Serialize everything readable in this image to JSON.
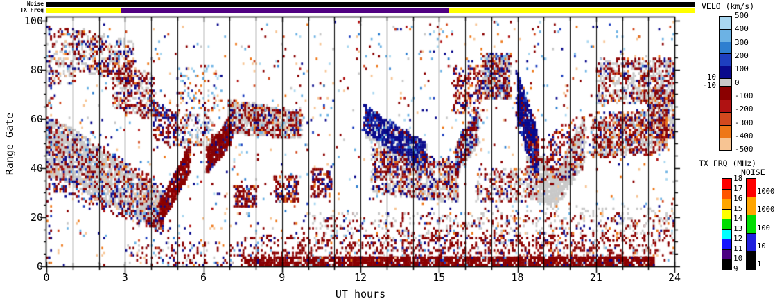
{
  "strips": {
    "noise_label": "Noise",
    "tx_freq_label": "TX Freq",
    "noise_segments": [
      {
        "t0": 0,
        "t1": 24.77,
        "color": "#000000"
      }
    ],
    "tx_freq_segments": [
      {
        "t0": 0,
        "t1": 2.86,
        "color": "#FFFF00"
      },
      {
        "t0": 2.86,
        "t1": 15.36,
        "color": "#500082"
      },
      {
        "t0": 15.36,
        "t1": 24.77,
        "color": "#FFFF00"
      }
    ]
  },
  "axes": {
    "y_label": "Range Gate",
    "x_label": "UT hours",
    "y_major_ticks": [
      0,
      20,
      40,
      60,
      80,
      100
    ],
    "y_minor_step": 5,
    "x_major_ticks": [
      0,
      3,
      6,
      9,
      12,
      15,
      18,
      21,
      24
    ],
    "x_minor_step": 1
  },
  "colorbars": {
    "velo": {
      "title": "VELO (km/s)",
      "tick_labels": [
        "500",
        "400",
        "300",
        "200",
        "100",
        "0",
        "-100",
        "-200",
        "-300",
        "-400",
        "-500"
      ],
      "inner_ticks": [
        "10",
        "-10"
      ],
      "segments_top_to_bottom": [
        "#A9D7F0",
        "#6CB2E4",
        "#2E7FD0",
        "#1E3FBF",
        "#09098C",
        "#C9C9C9",
        "#8B0000",
        "#B01212",
        "#D2491E",
        "#EE7718",
        "#F7C493"
      ]
    },
    "tx_frq": {
      "title": "TX FRQ (MHz)",
      "tick_labels": [
        "18",
        "17",
        "16",
        "15",
        "14",
        "13",
        "12",
        "11",
        "10",
        "9"
      ],
      "segments_top_to_bottom": [
        "#FF0000",
        "#FF5500",
        "#FFA500",
        "#FFFF00",
        "#00DD00",
        "#00FFFF",
        "#1414FF",
        "#4B0082",
        "#000000"
      ]
    },
    "noise": {
      "title": "NOISE",
      "tick_labels": [
        "10000",
        "1000",
        "100",
        "10",
        "1"
      ],
      "segments_top_to_bottom": [
        "#FF0000",
        "#FFA500",
        "#00DD00",
        "#2020DD",
        "#000000"
      ]
    }
  },
  "chart_data": {
    "type": "scatter",
    "subtype": "range-time-parameter",
    "title": "",
    "xlabel": "UT hours",
    "ylabel": "Range Gate",
    "xlim": [
      0,
      24
    ],
    "ylim": [
      0,
      101
    ],
    "grid": "vertical-hour-lines",
    "hour_line_color": "#000000",
    "seed": 42,
    "cell": {
      "dt_hours": 0.07,
      "dg_gates": 1
    },
    "palette": {
      "darkred": "#8B0000",
      "red": "#B01212",
      "orangered": "#D2491E",
      "orange": "#EE7718",
      "peach": "#F7C493",
      "navy": "#09098C",
      "blue": "#1E3FBF",
      "mblue": "#2E7FD0",
      "lblue": "#6CB2E4",
      "paleblue": "#A9D7F0",
      "gray": "#C9C9C9"
    },
    "ground_scatter_clusters": [
      {
        "t0": 0.0,
        "t1": 1.0,
        "gs": [
          36,
          60
        ],
        "ge": [
          34,
          56
        ],
        "n": 520
      },
      {
        "t0": 1.0,
        "t1": 2.6,
        "gs": [
          32,
          56
        ],
        "ge": [
          24,
          44
        ],
        "n": 800
      },
      {
        "t0": 2.6,
        "t1": 4.45,
        "gs": [
          24,
          44
        ],
        "ge": [
          15,
          30
        ],
        "n": 700
      },
      {
        "t0": 6.1,
        "t1": 7.05,
        "gs": [
          38,
          50
        ],
        "ge": [
          50,
          62
        ],
        "n": 160
      },
      {
        "t0": 6.9,
        "t1": 9.7,
        "gs": [
          54,
          68
        ],
        "ge": [
          52,
          63
        ],
        "n": 650
      },
      {
        "t0": 12.15,
        "t1": 14.5,
        "gs": [
          52,
          64
        ],
        "ge": [
          36,
          50
        ],
        "n": 420
      },
      {
        "t0": 12.4,
        "t1": 15.7,
        "gs": [
          30,
          48
        ],
        "ge": [
          26,
          42
        ],
        "n": 620
      },
      {
        "t0": 15.6,
        "t1": 16.5,
        "gs": [
          36,
          50
        ],
        "ge": [
          50,
          64
        ],
        "n": 260
      },
      {
        "t0": 16.6,
        "t1": 17.7,
        "gs": [
          68,
          86
        ],
        "ge": [
          68,
          86
        ],
        "n": 280
      },
      {
        "t0": 18.3,
        "t1": 19.45,
        "gs": [
          28,
          52
        ],
        "ge": [
          24,
          38
        ],
        "n": 550
      },
      {
        "t0": 19.45,
        "t1": 20.55,
        "gs": [
          24,
          38
        ],
        "ge": [
          42,
          62
        ],
        "n": 550
      },
      {
        "t0": 20.8,
        "t1": 23.7,
        "gs": [
          44,
          60
        ],
        "ge": [
          48,
          64
        ],
        "n": 600
      },
      {
        "t0": 21.0,
        "t1": 24.0,
        "gs": [
          66,
          84
        ],
        "ge": [
          66,
          84
        ],
        "n": 450
      },
      {
        "t0": 23.0,
        "t1": 24.0,
        "gs": [
          52,
          72
        ],
        "ge": [
          52,
          72
        ],
        "n": 220
      },
      {
        "t0": 0.0,
        "t1": 1.0,
        "gs": [
          74,
          92
        ],
        "ge": [
          74,
          92
        ],
        "n": 70
      },
      {
        "t0": 1.0,
        "t1": 3.3,
        "gs": [
          80,
          97
        ],
        "ge": [
          74,
          92
        ],
        "n": 200
      },
      {
        "t0": 2.5,
        "t1": 4.1,
        "gs": [
          64,
          84
        ],
        "ge": [
          60,
          78
        ],
        "n": 170
      },
      {
        "t0": 16.4,
        "t1": 18.3,
        "gs": [
          26,
          40
        ],
        "ge": [
          26,
          40
        ],
        "n": 130
      },
      {
        "t0": 16.0,
        "t1": 24.0,
        "gs": [
          13,
          24
        ],
        "ge": [
          13,
          24
        ],
        "n": 170
      },
      {
        "t0": 10.0,
        "t1": 16.0,
        "gs": [
          10,
          22
        ],
        "ge": [
          10,
          22
        ],
        "n": 90
      },
      {
        "t0": 4.9,
        "t1": 6.3,
        "gs": [
          48,
          62
        ],
        "ge": [
          48,
          62
        ],
        "n": 110
      }
    ],
    "ionospheric_clusters": [
      {
        "t0": 0.0,
        "t1": 4.45,
        "gs": [
          32,
          62
        ],
        "ge": [
          13,
          34
        ],
        "n": 680,
        "mix": {
          "darkred": 0.5,
          "navy": 0.2,
          "red": 0.1,
          "blue": 0.05,
          "orange": 0.05,
          "peach": 0.05,
          "mblue": 0.05
        }
      },
      {
        "t0": 0.1,
        "t1": 1.1,
        "gs": [
          74,
          97
        ],
        "ge": [
          74,
          97
        ],
        "n": 90,
        "mix": {
          "darkred": 0.5,
          "navy": 0.25,
          "mblue": 0.08,
          "orange": 0.07,
          "peach": 0.1
        }
      },
      {
        "t0": 1.1,
        "t1": 3.3,
        "gs": [
          80,
          97
        ],
        "ge": [
          74,
          91
        ],
        "n": 250,
        "mix": {
          "darkred": 0.5,
          "navy": 0.25,
          "mblue": 0.08,
          "orange": 0.07,
          "peach": 0.1
        }
      },
      {
        "t0": 2.5,
        "t1": 4.1,
        "gs": [
          64,
          84
        ],
        "ge": [
          60,
          78
        ],
        "n": 220,
        "mix": {
          "darkred": 0.55,
          "navy": 0.2,
          "red": 0.1,
          "peach": 0.1,
          "orange": 0.05
        }
      },
      {
        "t0": 4.0,
        "t1": 4.95,
        "gs": [
          52,
          68
        ],
        "ge": [
          48,
          62
        ],
        "n": 170,
        "mix": {
          "darkred": 0.5,
          "navy": 0.33,
          "blue": 0.07,
          "orange": 0.1
        }
      },
      {
        "t0": 4.3,
        "t1": 5.45,
        "gs": [
          16,
          26
        ],
        "ge": [
          38,
          50
        ],
        "n": 520,
        "mix": {
          "darkred": 0.82,
          "red": 0.08,
          "navy": 0.1
        }
      },
      {
        "t0": 6.1,
        "t1": 7.05,
        "gs": [
          38,
          48
        ],
        "ge": [
          50,
          62
        ],
        "n": 430,
        "mix": {
          "darkred": 0.85,
          "navy": 0.1,
          "blue": 0.05
        }
      },
      {
        "t0": 6.9,
        "t1": 9.7,
        "gs": [
          54,
          68
        ],
        "ge": [
          52,
          63
        ],
        "n": 380,
        "mix": {
          "darkred": 0.6,
          "navy": 0.15,
          "red": 0.1,
          "orange": 0.05,
          "lblue": 0.05,
          "peach": 0.05
        }
      },
      {
        "t0": 7.15,
        "t1": 8.0,
        "gs": [
          24,
          33
        ],
        "ge": [
          24,
          33
        ],
        "n": 120,
        "mix": {
          "darkred": 0.7,
          "navy": 0.2,
          "orange": 0.1
        }
      },
      {
        "t0": 8.7,
        "t1": 9.6,
        "gs": [
          26,
          37
        ],
        "ge": [
          26,
          37
        ],
        "n": 140,
        "mix": {
          "darkred": 0.6,
          "navy": 0.25,
          "orange": 0.15
        }
      },
      {
        "t0": 10.1,
        "t1": 10.85,
        "gs": [
          28,
          40
        ],
        "ge": [
          28,
          40
        ],
        "n": 110,
        "mix": {
          "darkred": 0.55,
          "navy": 0.35,
          "orange": 0.1
        }
      },
      {
        "t0": 12.1,
        "t1": 14.5,
        "gs": [
          55,
          66
        ],
        "ge": [
          38,
          50
        ],
        "n": 680,
        "mix": {
          "navy": 0.75,
          "blue": 0.1,
          "darkred": 0.1,
          "mblue": 0.05
        }
      },
      {
        "t0": 12.4,
        "t1": 15.7,
        "gs": [
          30,
          48
        ],
        "ge": [
          26,
          44
        ],
        "n": 430,
        "mix": {
          "darkred": 0.45,
          "navy": 0.35,
          "red": 0.1,
          "orange": 0.1
        }
      },
      {
        "t0": 15.6,
        "t1": 16.5,
        "gs": [
          36,
          50
        ],
        "ge": [
          52,
          66
        ],
        "n": 190,
        "mix": {
          "darkred": 0.55,
          "navy": 0.3,
          "lblue": 0.15
        }
      },
      {
        "t0": 15.5,
        "t1": 16.6,
        "gs": [
          62,
          82
        ],
        "ge": [
          62,
          82
        ],
        "n": 190,
        "mix": {
          "darkred": 0.5,
          "navy": 0.2,
          "orange": 0.1,
          "peach": 0.1,
          "red": 0.1
        }
      },
      {
        "t0": 16.6,
        "t1": 17.7,
        "gs": [
          68,
          87
        ],
        "ge": [
          68,
          87
        ],
        "n": 250,
        "mix": {
          "darkred": 0.55,
          "navy": 0.25,
          "orange": 0.1,
          "lblue": 0.1
        }
      },
      {
        "t0": 17.95,
        "t1": 18.75,
        "gs": [
          58,
          80
        ],
        "ge": [
          34,
          54
        ],
        "n": 620,
        "mix": {
          "navy": 0.8,
          "blue": 0.1,
          "darkred": 0.1
        }
      },
      {
        "t0": 18.3,
        "t1": 20.55,
        "gs": [
          26,
          50
        ],
        "ge": [
          40,
          62
        ],
        "n": 280,
        "mix": {
          "darkred": 0.6,
          "navy": 0.2,
          "red": 0.1,
          "orange": 0.1
        }
      },
      {
        "t0": 20.8,
        "t1": 23.7,
        "gs": [
          44,
          62
        ],
        "ge": [
          46,
          64
        ],
        "n": 520,
        "mix": {
          "darkred": 0.55,
          "navy": 0.15,
          "orange": 0.1,
          "red": 0.1,
          "lblue": 0.05,
          "peach": 0.05
        }
      },
      {
        "t0": 21.0,
        "t1": 24.0,
        "gs": [
          66,
          85
        ],
        "ge": [
          66,
          85
        ],
        "n": 300,
        "mix": {
          "darkred": 0.6,
          "navy": 0.15,
          "orange": 0.1,
          "red": 0.1,
          "mblue": 0.05
        }
      },
      {
        "t0": 23.0,
        "t1": 24.0,
        "gs": [
          52,
          72
        ],
        "ge": [
          52,
          72
        ],
        "n": 160,
        "mix": {
          "darkred": 0.6,
          "navy": 0.2,
          "orange": 0.1,
          "peach": 0.1
        }
      },
      {
        "t0": 7.4,
        "t1": 10.0,
        "gs": [
          0,
          4
        ],
        "ge": [
          0,
          4
        ],
        "n": 250,
        "mix": {
          "darkred": 0.92,
          "navy": 0.05,
          "gray": 0.03
        }
      },
      {
        "t0": 10.0,
        "t1": 23.2,
        "gs": [
          0,
          4
        ],
        "ge": [
          0,
          4
        ],
        "n": 1700,
        "mix": {
          "darkred": 0.92,
          "navy": 0.05,
          "gray": 0.03
        }
      },
      {
        "t0": 7.4,
        "t1": 23.2,
        "gs": [
          3,
          13
        ],
        "ge": [
          3,
          13
        ],
        "n": 650,
        "mix": {
          "darkred": 0.8,
          "navy": 0.08,
          "gray": 0.06,
          "lblue": 0.03,
          "blue": 0.03
        }
      },
      {
        "t0": 3.0,
        "t1": 7.4,
        "gs": [
          0,
          10
        ],
        "ge": [
          0,
          10
        ],
        "n": 130,
        "mix": {
          "darkred": 0.6,
          "navy": 0.2,
          "lblue": 0.1,
          "gray": 0.1
        }
      },
      {
        "t0": 9.5,
        "t1": 16.2,
        "gs": [
          5,
          22
        ],
        "ge": [
          5,
          22
        ],
        "n": 240,
        "mix": {
          "darkred": 0.7,
          "navy": 0.1,
          "gray": 0.1,
          "orange": 0.05,
          "lblue": 0.05
        }
      },
      {
        "t0": 16.2,
        "t1": 24.0,
        "gs": [
          5,
          22
        ],
        "ge": [
          5,
          22
        ],
        "n": 280,
        "mix": {
          "darkred": 0.65,
          "navy": 0.1,
          "gray": 0.1,
          "orange": 0.08,
          "peach": 0.07
        }
      },
      {
        "t0": 4.9,
        "t1": 6.3,
        "gs": [
          48,
          64
        ],
        "ge": [
          48,
          64
        ],
        "n": 90,
        "mix": {
          "darkred": 0.5,
          "navy": 0.2,
          "orange": 0.15,
          "lblue": 0.15
        }
      },
      {
        "t0": 4.9,
        "t1": 6.6,
        "gs": [
          64,
          82
        ],
        "ge": [
          64,
          82
        ],
        "n": 85,
        "mix": {
          "lblue": 0.25,
          "paleblue": 0.15,
          "orange": 0.15,
          "peach": 0.15,
          "darkred": 0.15,
          "navy": 0.15
        }
      },
      {
        "t0": 0.0,
        "t1": 0.15,
        "gs": [
          0,
          100
        ],
        "ge": [
          0,
          100
        ],
        "n": 80,
        "mix": {
          "darkred": 0.4,
          "navy": 0.3,
          "blue": 0.1,
          "lblue": 0.1,
          "orange": 0.1
        }
      },
      {
        "t0": 16.4,
        "t1": 18.3,
        "gs": [
          26,
          40
        ],
        "ge": [
          26,
          40
        ],
        "n": 110,
        "mix": {
          "darkred": 0.6,
          "navy": 0.2,
          "orange": 0.1,
          "red": 0.1
        }
      },
      {
        "t0": 0.0,
        "t1": 24.0,
        "gs": [
          0,
          100
        ],
        "ge": [
          0,
          100
        ],
        "n": 1150,
        "mix": {
          "darkred": 0.16,
          "red": 0.05,
          "orangered": 0.05,
          "orange": 0.1,
          "peach": 0.15,
          "navy": 0.1,
          "blue": 0.05,
          "mblue": 0.06,
          "lblue": 0.12,
          "paleblue": 0.08,
          "gray": 0.08
        }
      }
    ]
  }
}
